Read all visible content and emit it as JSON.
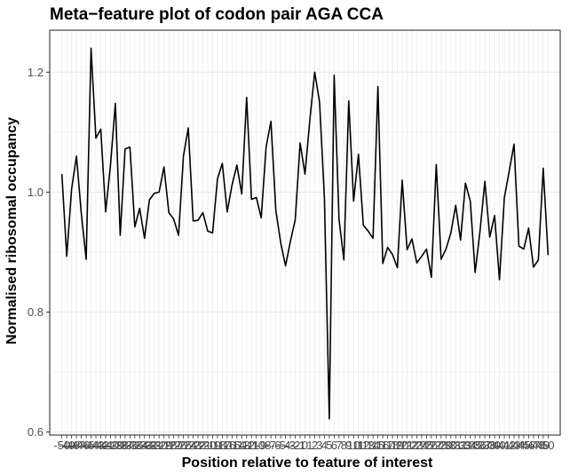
{
  "chart_data": {
    "type": "line",
    "title": "Meta−feature plot of codon pair AGA CCA",
    "xlabel": "Position relative to feature of interest",
    "ylabel": "Normalised ribosomal occupancy",
    "x": [
      -50,
      -49,
      -48,
      -47,
      -46,
      -45,
      -44,
      -43,
      -42,
      -41,
      -40,
      -39,
      -38,
      -37,
      -36,
      -35,
      -34,
      -33,
      -32,
      -31,
      -30,
      -29,
      -28,
      -27,
      -26,
      -25,
      -24,
      -23,
      -22,
      -21,
      -20,
      -19,
      -18,
      -17,
      -16,
      -15,
      -14,
      -13,
      -12,
      -11,
      -10,
      -9,
      -8,
      -7,
      -6,
      -5,
      -4,
      -3,
      -2,
      -1,
      0,
      1,
      2,
      3,
      4,
      5,
      6,
      7,
      8,
      9,
      10,
      11,
      12,
      13,
      14,
      15,
      16,
      17,
      18,
      19,
      20,
      21,
      22,
      23,
      24,
      25,
      26,
      27,
      28,
      29,
      30,
      31,
      32,
      33,
      34,
      35,
      36,
      37,
      38,
      39,
      40,
      41,
      42,
      43,
      44,
      45,
      46,
      47,
      48,
      49,
      50
    ],
    "x_tick_labels": [
      "-50",
      "-49",
      "-48",
      "-47",
      "-46",
      "-45",
      "-44",
      "-43",
      "-42",
      "-41",
      "-40",
      "-39",
      "-38",
      "-37",
      "-36",
      "-35",
      "-34",
      "-33",
      "-32",
      "-31",
      "-30",
      "-29",
      "-28",
      "-27",
      "-26",
      "-25",
      "-24",
      "-23",
      "-22",
      "-21",
      "-20",
      "-19",
      "-18",
      "-17",
      "-16",
      "-15",
      "-14",
      "-13",
      "-12",
      "-11",
      "-10",
      "-9",
      "-8",
      "-7",
      "-6",
      "-5",
      "-4",
      "-3",
      "-2",
      "-1",
      "0",
      "1",
      "2",
      "3",
      "4",
      "5",
      "6",
      "7",
      "8",
      "9",
      "10",
      "11",
      "12",
      "13",
      "14",
      "15",
      "16",
      "17",
      "18",
      "19",
      "20",
      "21",
      "22",
      "23",
      "24",
      "25",
      "26",
      "27",
      "28",
      "29",
      "30",
      "31",
      "32",
      "33",
      "34",
      "35",
      "36",
      "37",
      "38",
      "39",
      "40",
      "41",
      "42",
      "43",
      "44",
      "45",
      "46",
      "47",
      "48",
      "49",
      "50"
    ],
    "y": [
      1.03,
      0.893,
      1.005,
      1.06,
      0.964,
      0.888,
      1.24,
      1.09,
      1.105,
      0.967,
      1.045,
      1.148,
      0.928,
      1.072,
      1.075,
      0.942,
      0.973,
      0.923,
      0.987,
      0.998,
      1.0,
      1.042,
      0.966,
      0.955,
      0.928,
      1.06,
      1.107,
      0.952,
      0.953,
      0.966,
      0.935,
      0.932,
      1.022,
      1.048,
      0.967,
      1.012,
      1.045,
      0.997,
      1.158,
      0.988,
      0.991,
      0.957,
      1.075,
      1.118,
      0.97,
      0.916,
      0.877,
      0.918,
      0.954,
      1.082,
      1.03,
      1.12,
      1.2,
      1.15,
      0.99,
      0.622,
      1.195,
      0.955,
      0.887,
      1.152,
      0.985,
      1.063,
      0.945,
      0.935,
      0.923,
      1.176,
      0.881,
      0.908,
      0.896,
      0.874,
      1.02,
      0.904,
      0.922,
      0.882,
      0.893,
      0.905,
      0.858,
      1.046,
      0.888,
      0.905,
      0.932,
      0.978,
      0.92,
      1.015,
      0.985,
      0.866,
      0.935,
      1.018,
      0.925,
      0.961,
      0.854,
      0.99,
      1.035,
      1.08,
      0.91,
      0.905,
      0.94,
      0.875,
      0.887,
      1.04,
      0.895
    ],
    "y_ticks": [
      0.6,
      0.8,
      1.0,
      1.2
    ],
    "y_tick_labels": [
      "0.6",
      "0.8",
      "1.0",
      "1.2"
    ],
    "ylim": [
      0.595,
      1.27
    ],
    "xlim": [
      -52.5,
      52.5
    ],
    "grid": true,
    "line_color": "#000000",
    "grid_color": "#ebebeb"
  }
}
